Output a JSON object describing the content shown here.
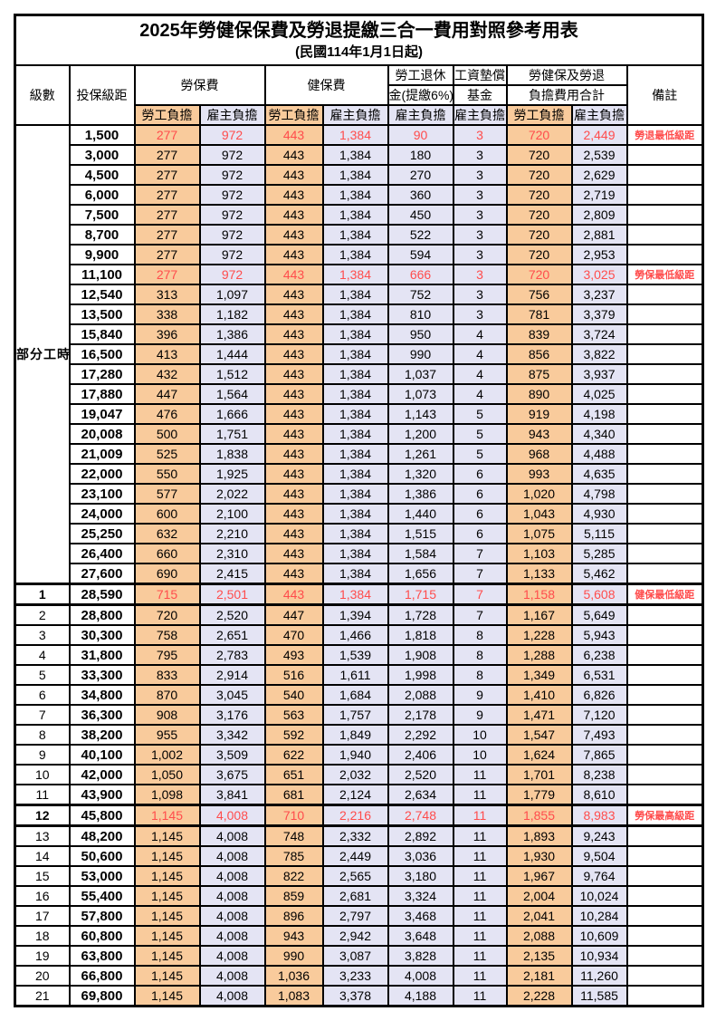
{
  "page": {
    "background": "#ffffff"
  },
  "table": {
    "title": "2025年勞健保保費及勞退提繳三合一費用對照參考用表",
    "subtitle": "(民國114年1月1日起)",
    "colors": {
      "employee_bg": "#F9CB9C",
      "employer_bg": "#E4E4F4",
      "highlight_text": "#FF4C4C",
      "border": "#000000"
    },
    "header": {
      "level": "級數",
      "salary": "投保級距",
      "labor": "勞保費",
      "health": "健保費",
      "pension_line1": "勞工退休",
      "pension_line2": "金(提繳6%)",
      "wage_fund_line1": "工資墊償",
      "wage_fund_line2": "基金",
      "total_line1": "勞健保及勞退",
      "total_line2": "負擔費用合計",
      "remark": "備註",
      "employee": "勞工負擔",
      "employer": "雇主負擔"
    },
    "part_time_label": "部分工時",
    "value_columns": [
      "labor-employee",
      "labor-employer",
      "health-employee",
      "health-employer",
      "pension-employer",
      "wage-fund-employer",
      "total-employee",
      "total-employer"
    ],
    "value_column_kind": [
      "emp",
      "er",
      "emp",
      "er",
      "er",
      "er",
      "emp",
      "er"
    ],
    "rows": [
      {
        "level": "",
        "salary": "1,500",
        "v": [
          "277",
          "972",
          "443",
          "1,384",
          "90",
          "3",
          "720",
          "2,449"
        ],
        "remark": "勞退最低級距",
        "hl": true
      },
      {
        "level": "",
        "salary": "3,000",
        "v": [
          "277",
          "972",
          "443",
          "1,384",
          "180",
          "3",
          "720",
          "2,539"
        ],
        "remark": "",
        "hl": false
      },
      {
        "level": "",
        "salary": "4,500",
        "v": [
          "277",
          "972",
          "443",
          "1,384",
          "270",
          "3",
          "720",
          "2,629"
        ],
        "remark": "",
        "hl": false
      },
      {
        "level": "",
        "salary": "6,000",
        "v": [
          "277",
          "972",
          "443",
          "1,384",
          "360",
          "3",
          "720",
          "2,719"
        ],
        "remark": "",
        "hl": false
      },
      {
        "level": "",
        "salary": "7,500",
        "v": [
          "277",
          "972",
          "443",
          "1,384",
          "450",
          "3",
          "720",
          "2,809"
        ],
        "remark": "",
        "hl": false
      },
      {
        "level": "",
        "salary": "8,700",
        "v": [
          "277",
          "972",
          "443",
          "1,384",
          "522",
          "3",
          "720",
          "2,881"
        ],
        "remark": "",
        "hl": false
      },
      {
        "level": "",
        "salary": "9,900",
        "v": [
          "277",
          "972",
          "443",
          "1,384",
          "594",
          "3",
          "720",
          "2,953"
        ],
        "remark": "",
        "hl": false
      },
      {
        "level": "",
        "salary": "11,100",
        "v": [
          "277",
          "972",
          "443",
          "1,384",
          "666",
          "3",
          "720",
          "3,025"
        ],
        "remark": "勞保最低級距",
        "hl": true
      },
      {
        "level": "",
        "salary": "12,540",
        "v": [
          "313",
          "1,097",
          "443",
          "1,384",
          "752",
          "3",
          "756",
          "3,237"
        ],
        "remark": "",
        "hl": false
      },
      {
        "level": "",
        "salary": "13,500",
        "v": [
          "338",
          "1,182",
          "443",
          "1,384",
          "810",
          "3",
          "781",
          "3,379"
        ],
        "remark": "",
        "hl": false
      },
      {
        "level": "",
        "salary": "15,840",
        "v": [
          "396",
          "1,386",
          "443",
          "1,384",
          "950",
          "4",
          "839",
          "3,724"
        ],
        "remark": "",
        "hl": false
      },
      {
        "level": "",
        "salary": "16,500",
        "v": [
          "413",
          "1,444",
          "443",
          "1,384",
          "990",
          "4",
          "856",
          "3,822"
        ],
        "remark": "",
        "hl": false
      },
      {
        "level": "",
        "salary": "17,280",
        "v": [
          "432",
          "1,512",
          "443",
          "1,384",
          "1,037",
          "4",
          "875",
          "3,937"
        ],
        "remark": "",
        "hl": false
      },
      {
        "level": "",
        "salary": "17,880",
        "v": [
          "447",
          "1,564",
          "443",
          "1,384",
          "1,073",
          "4",
          "890",
          "4,025"
        ],
        "remark": "",
        "hl": false
      },
      {
        "level": "",
        "salary": "19,047",
        "v": [
          "476",
          "1,666",
          "443",
          "1,384",
          "1,143",
          "5",
          "919",
          "4,198"
        ],
        "remark": "",
        "hl": false
      },
      {
        "level": "",
        "salary": "20,008",
        "v": [
          "500",
          "1,751",
          "443",
          "1,384",
          "1,200",
          "5",
          "943",
          "4,340"
        ],
        "remark": "",
        "hl": false
      },
      {
        "level": "",
        "salary": "21,009",
        "v": [
          "525",
          "1,838",
          "443",
          "1,384",
          "1,261",
          "5",
          "968",
          "4,488"
        ],
        "remark": "",
        "hl": false
      },
      {
        "level": "",
        "salary": "22,000",
        "v": [
          "550",
          "1,925",
          "443",
          "1,384",
          "1,320",
          "6",
          "993",
          "4,635"
        ],
        "remark": "",
        "hl": false
      },
      {
        "level": "",
        "salary": "23,100",
        "v": [
          "577",
          "2,022",
          "443",
          "1,384",
          "1,386",
          "6",
          "1,020",
          "4,798"
        ],
        "remark": "",
        "hl": false
      },
      {
        "level": "",
        "salary": "24,000",
        "v": [
          "600",
          "2,100",
          "443",
          "1,384",
          "1,440",
          "6",
          "1,043",
          "4,930"
        ],
        "remark": "",
        "hl": false
      },
      {
        "level": "",
        "salary": "25,250",
        "v": [
          "632",
          "2,210",
          "443",
          "1,384",
          "1,515",
          "6",
          "1,075",
          "5,115"
        ],
        "remark": "",
        "hl": false
      },
      {
        "level": "",
        "salary": "26,400",
        "v": [
          "660",
          "2,310",
          "443",
          "1,384",
          "1,584",
          "7",
          "1,103",
          "5,285"
        ],
        "remark": "",
        "hl": false
      },
      {
        "level": "",
        "salary": "27,600",
        "v": [
          "690",
          "2,415",
          "443",
          "1,384",
          "1,656",
          "7",
          "1,133",
          "5,462"
        ],
        "remark": "",
        "hl": false
      },
      {
        "level": "1",
        "salary": "28,590",
        "v": [
          "715",
          "2,501",
          "443",
          "1,384",
          "1,715",
          "7",
          "1,158",
          "5,608"
        ],
        "remark": "健保最低級距",
        "hl": true,
        "thick": true
      },
      {
        "level": "2",
        "salary": "28,800",
        "v": [
          "720",
          "2,520",
          "447",
          "1,394",
          "1,728",
          "7",
          "1,167",
          "5,649"
        ],
        "remark": "",
        "hl": false
      },
      {
        "level": "3",
        "salary": "30,300",
        "v": [
          "758",
          "2,651",
          "470",
          "1,466",
          "1,818",
          "8",
          "1,228",
          "5,943"
        ],
        "remark": "",
        "hl": false
      },
      {
        "level": "4",
        "salary": "31,800",
        "v": [
          "795",
          "2,783",
          "493",
          "1,539",
          "1,908",
          "8",
          "1,288",
          "6,238"
        ],
        "remark": "",
        "hl": false
      },
      {
        "level": "5",
        "salary": "33,300",
        "v": [
          "833",
          "2,914",
          "516",
          "1,611",
          "1,998",
          "8",
          "1,349",
          "6,531"
        ],
        "remark": "",
        "hl": false
      },
      {
        "level": "6",
        "salary": "34,800",
        "v": [
          "870",
          "3,045",
          "540",
          "1,684",
          "2,088",
          "9",
          "1,410",
          "6,826"
        ],
        "remark": "",
        "hl": false
      },
      {
        "level": "7",
        "salary": "36,300",
        "v": [
          "908",
          "3,176",
          "563",
          "1,757",
          "2,178",
          "9",
          "1,471",
          "7,120"
        ],
        "remark": "",
        "hl": false
      },
      {
        "level": "8",
        "salary": "38,200",
        "v": [
          "955",
          "3,342",
          "592",
          "1,849",
          "2,292",
          "10",
          "1,547",
          "7,493"
        ],
        "remark": "",
        "hl": false
      },
      {
        "level": "9",
        "salary": "40,100",
        "v": [
          "1,002",
          "3,509",
          "622",
          "1,940",
          "2,406",
          "10",
          "1,624",
          "7,865"
        ],
        "remark": "",
        "hl": false
      },
      {
        "level": "10",
        "salary": "42,000",
        "v": [
          "1,050",
          "3,675",
          "651",
          "2,032",
          "2,520",
          "11",
          "1,701",
          "8,238"
        ],
        "remark": "",
        "hl": false
      },
      {
        "level": "11",
        "salary": "43,900",
        "v": [
          "1,098",
          "3,841",
          "681",
          "2,124",
          "2,634",
          "11",
          "1,779",
          "8,610"
        ],
        "remark": "",
        "hl": false
      },
      {
        "level": "12",
        "salary": "45,800",
        "v": [
          "1,145",
          "4,008",
          "710",
          "2,216",
          "2,748",
          "11",
          "1,855",
          "8,983"
        ],
        "remark": "勞保最高級距",
        "hl": true,
        "thick": true
      },
      {
        "level": "13",
        "salary": "48,200",
        "v": [
          "1,145",
          "4,008",
          "748",
          "2,332",
          "2,892",
          "11",
          "1,893",
          "9,243"
        ],
        "remark": "",
        "hl": false
      },
      {
        "level": "14",
        "salary": "50,600",
        "v": [
          "1,145",
          "4,008",
          "785",
          "2,449",
          "3,036",
          "11",
          "1,930",
          "9,504"
        ],
        "remark": "",
        "hl": false
      },
      {
        "level": "15",
        "salary": "53,000",
        "v": [
          "1,145",
          "4,008",
          "822",
          "2,565",
          "3,180",
          "11",
          "1,967",
          "9,764"
        ],
        "remark": "",
        "hl": false
      },
      {
        "level": "16",
        "salary": "55,400",
        "v": [
          "1,145",
          "4,008",
          "859",
          "2,681",
          "3,324",
          "11",
          "2,004",
          "10,024"
        ],
        "remark": "",
        "hl": false
      },
      {
        "level": "17",
        "salary": "57,800",
        "v": [
          "1,145",
          "4,008",
          "896",
          "2,797",
          "3,468",
          "11",
          "2,041",
          "10,284"
        ],
        "remark": "",
        "hl": false
      },
      {
        "level": "18",
        "salary": "60,800",
        "v": [
          "1,145",
          "4,008",
          "943",
          "2,942",
          "3,648",
          "11",
          "2,088",
          "10,609"
        ],
        "remark": "",
        "hl": false
      },
      {
        "level": "19",
        "salary": "63,800",
        "v": [
          "1,145",
          "4,008",
          "990",
          "3,087",
          "3,828",
          "11",
          "2,135",
          "10,934"
        ],
        "remark": "",
        "hl": false
      },
      {
        "level": "20",
        "salary": "66,800",
        "v": [
          "1,145",
          "4,008",
          "1,036",
          "3,233",
          "4,008",
          "11",
          "2,181",
          "11,260"
        ],
        "remark": "",
        "hl": false
      },
      {
        "level": "21",
        "salary": "69,800",
        "v": [
          "1,145",
          "4,008",
          "1,083",
          "3,378",
          "4,188",
          "11",
          "2,228",
          "11,585"
        ],
        "remark": "",
        "hl": false
      }
    ]
  }
}
